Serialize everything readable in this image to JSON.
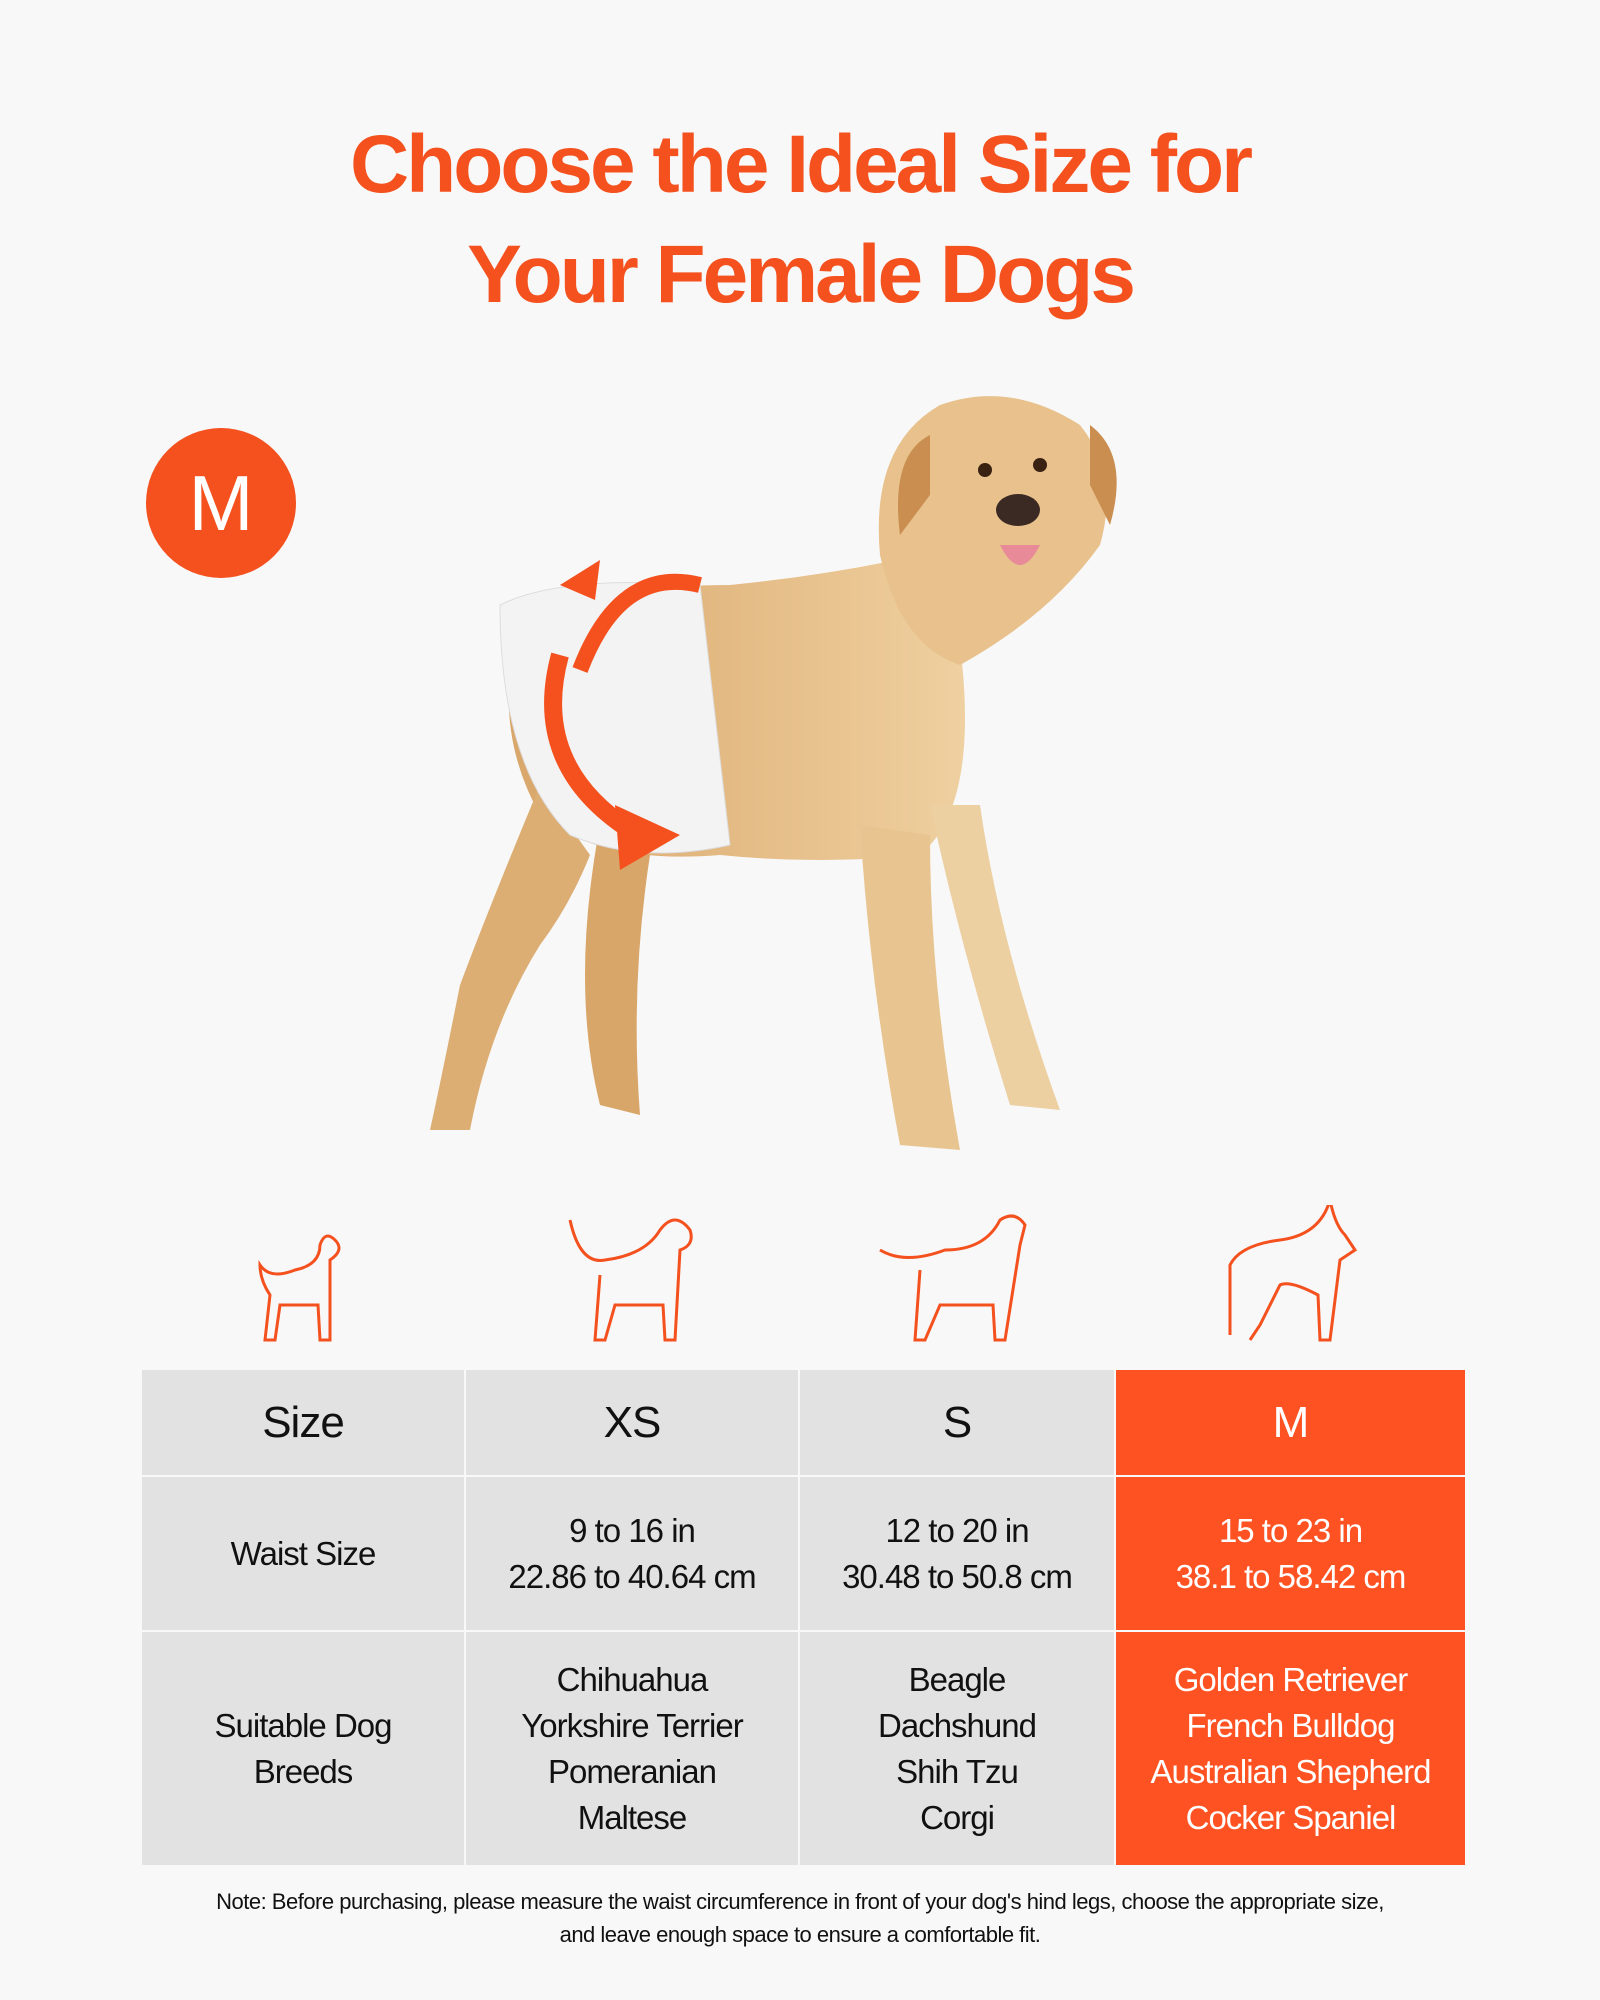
{
  "title": {
    "line1": "Choose the Ideal Size for",
    "line2": "Your Female Dogs"
  },
  "badge": "M",
  "colors": {
    "accent": "#f4511e",
    "highlight": "#ff5222",
    "cell": "#e2e2e2"
  },
  "icons": [
    "small-dog-outline-icon",
    "beagle-outline-icon",
    "dachshund-outline-icon",
    "doberman-outline-icon"
  ],
  "table": {
    "headers": [
      "Size",
      "XS",
      "S",
      "M"
    ],
    "selected": "M",
    "rows": [
      {
        "label": "Waist Size",
        "values": [
          [
            "9 to 16 in",
            "22.86 to 40.64 cm"
          ],
          [
            "12 to 20 in",
            "30.48 to 50.8 cm"
          ],
          [
            "15 to 23 in",
            "38.1 to 58.42 cm"
          ]
        ]
      },
      {
        "label": [
          "Suitable Dog",
          "Breeds"
        ],
        "values": [
          [
            "Chihuahua",
            "Yorkshire Terrier",
            "Pomeranian",
            "Maltese"
          ],
          [
            "Beagle",
            "Dachshund",
            "Shih Tzu",
            "Corgi"
          ],
          [
            "Golden Retriever",
            "French Bulldog",
            "Australian Shepherd",
            "Cocker Spaniel"
          ]
        ]
      }
    ]
  },
  "note": {
    "line1": "Note: Before purchasing, please measure the waist circumference in front of your dog's hind legs, choose the appropriate size,",
    "line2": "and leave enough space to ensure a comfortable fit."
  }
}
